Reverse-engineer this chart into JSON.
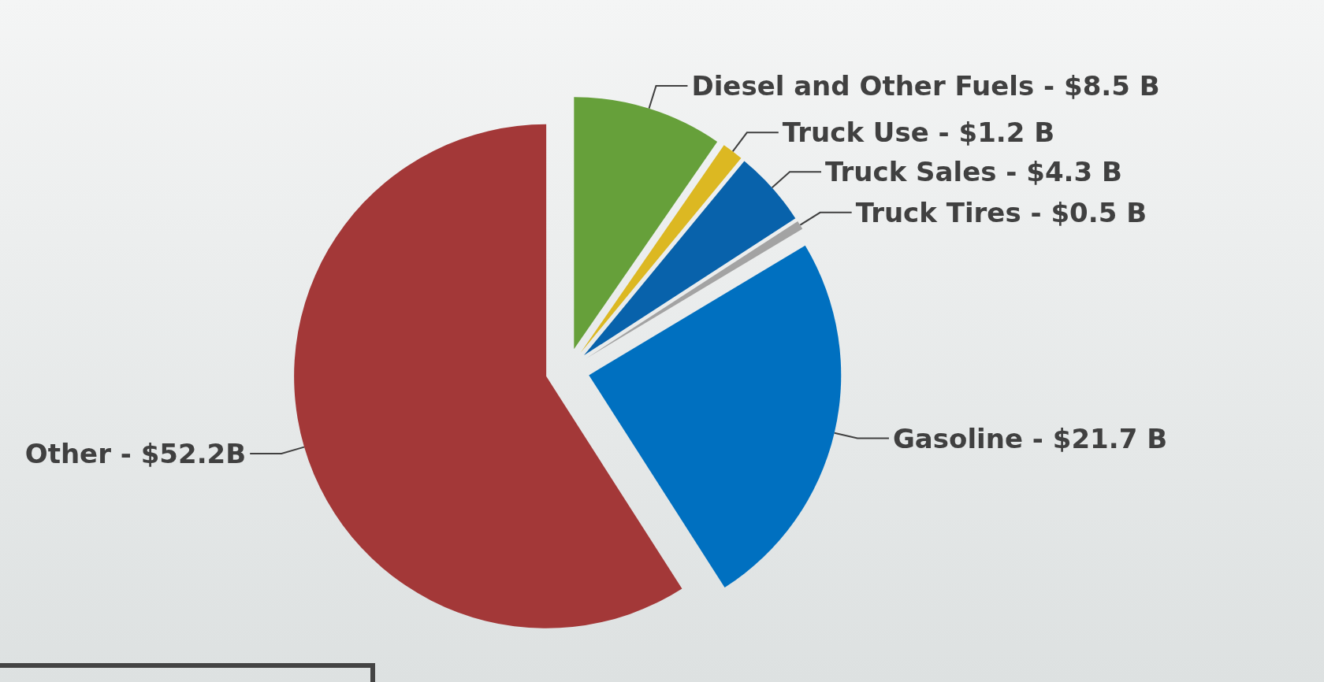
{
  "chart_data": {
    "type": "pie",
    "categories": [
      "Diesel and Other Fuels",
      "Truck Use",
      "Truck Sales",
      "Truck Tires",
      "Gasoline",
      "Other"
    ],
    "values": [
      8.5,
      1.2,
      4.3,
      0.5,
      21.7,
      52.2
    ],
    "value_labels": [
      "$8.5 B",
      "$1.2 B",
      "$4.3 B",
      "$0.5 B",
      "$21.7 B",
      "$52.2B"
    ],
    "colors": [
      "#66a03a",
      "#dcb822",
      "#0862ab",
      "#a3a3a3",
      "#0070c0",
      "#a33838"
    ],
    "legend": false
  }
}
